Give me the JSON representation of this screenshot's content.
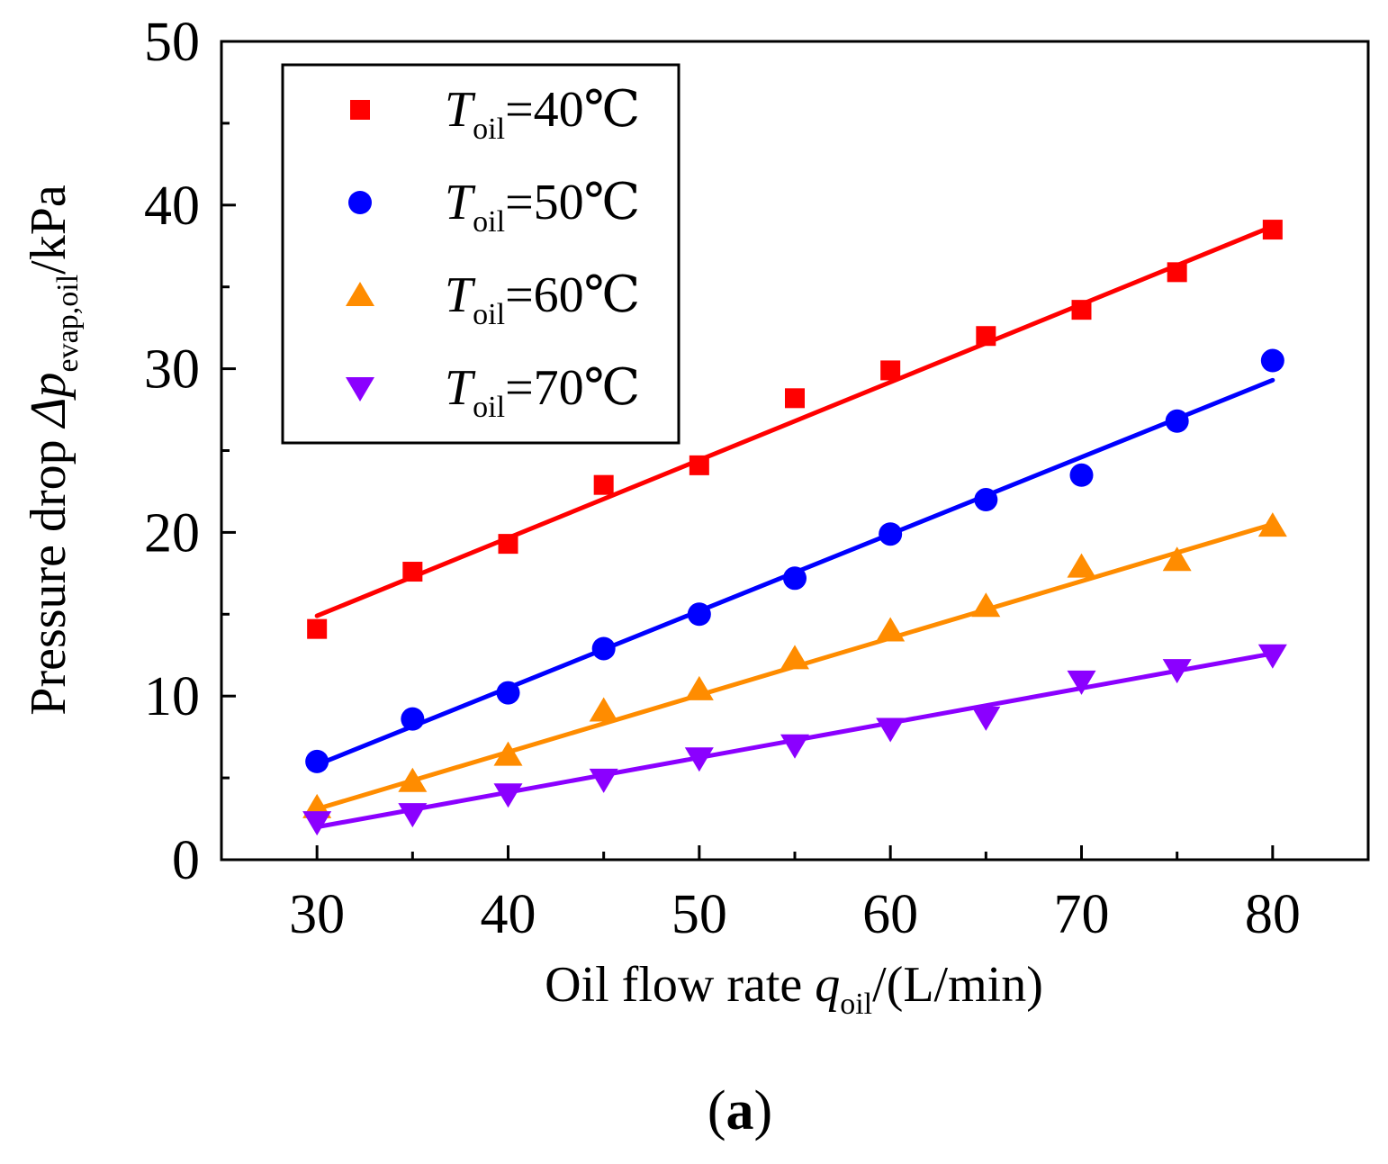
{
  "panel_label": {
    "open": "(",
    "letter": "a",
    "close": ")"
  },
  "chart_data": {
    "type": "scatter",
    "x_axis": {
      "label_text": "Oil flow rate ",
      "label_var": "q",
      "label_sub": "oil",
      "label_tail": "/(L/min)",
      "range": [
        25,
        85
      ],
      "ticks": [
        30,
        40,
        50,
        60,
        70,
        80
      ],
      "minor_ticks": [
        35,
        45,
        55,
        65,
        75
      ]
    },
    "y_axis": {
      "label_text": "Pressure drop ",
      "label_var": "Δp",
      "label_sub": "evap,oil",
      "label_tail": "/kPa",
      "range": [
        0,
        50
      ],
      "ticks": [
        0,
        10,
        20,
        30,
        40,
        50
      ],
      "minor_ticks": [
        5,
        15,
        25,
        35,
        45
      ]
    },
    "legend": {
      "position": "top-left"
    },
    "series": [
      {
        "name": "T",
        "name_sub": "oil",
        "name_value": "=40℃",
        "color": "#ff0000",
        "marker": "square",
        "x": [
          30,
          35,
          40,
          45,
          50,
          55,
          60,
          65,
          70,
          75,
          80
        ],
        "y": [
          14.1,
          17.6,
          19.3,
          22.9,
          24.1,
          28.2,
          29.9,
          32.0,
          33.6,
          35.9,
          38.5
        ],
        "fit": [
          [
            30,
            14.9
          ],
          [
            80,
            38.7
          ]
        ]
      },
      {
        "name": "T",
        "name_sub": "oil",
        "name_value": "=50℃",
        "color": "#0000ff",
        "marker": "circle",
        "x": [
          30,
          35,
          40,
          45,
          50,
          55,
          60,
          65,
          70,
          75,
          80
        ],
        "y": [
          6.0,
          8.6,
          10.2,
          12.9,
          15.0,
          17.2,
          19.9,
          22.0,
          23.5,
          26.8,
          30.5
        ],
        "fit": [
          [
            30,
            5.8
          ],
          [
            80,
            29.3
          ]
        ]
      },
      {
        "name": "T",
        "name_sub": "oil",
        "name_value": "=60℃",
        "color": "#ff8c00",
        "marker": "triangle-up",
        "x": [
          30,
          35,
          40,
          45,
          50,
          55,
          60,
          65,
          70,
          75,
          80
        ],
        "y": [
          3.2,
          4.8,
          6.4,
          9.1,
          10.4,
          12.3,
          14.0,
          15.5,
          17.9,
          18.3,
          20.4
        ],
        "fit": [
          [
            30,
            3.1
          ],
          [
            80,
            20.5
          ]
        ]
      },
      {
        "name": "T",
        "name_sub": "oil",
        "name_value": "=70℃",
        "color": "#8b00ff",
        "marker": "triangle-down",
        "x": [
          30,
          35,
          40,
          45,
          50,
          55,
          60,
          65,
          70,
          75,
          80
        ],
        "y": [
          2.3,
          2.8,
          4.0,
          4.9,
          6.2,
          7.0,
          8.0,
          8.7,
          10.9,
          11.6,
          12.5
        ],
        "fit": [
          [
            30,
            2.0
          ],
          [
            80,
            12.6
          ]
        ]
      }
    ]
  }
}
